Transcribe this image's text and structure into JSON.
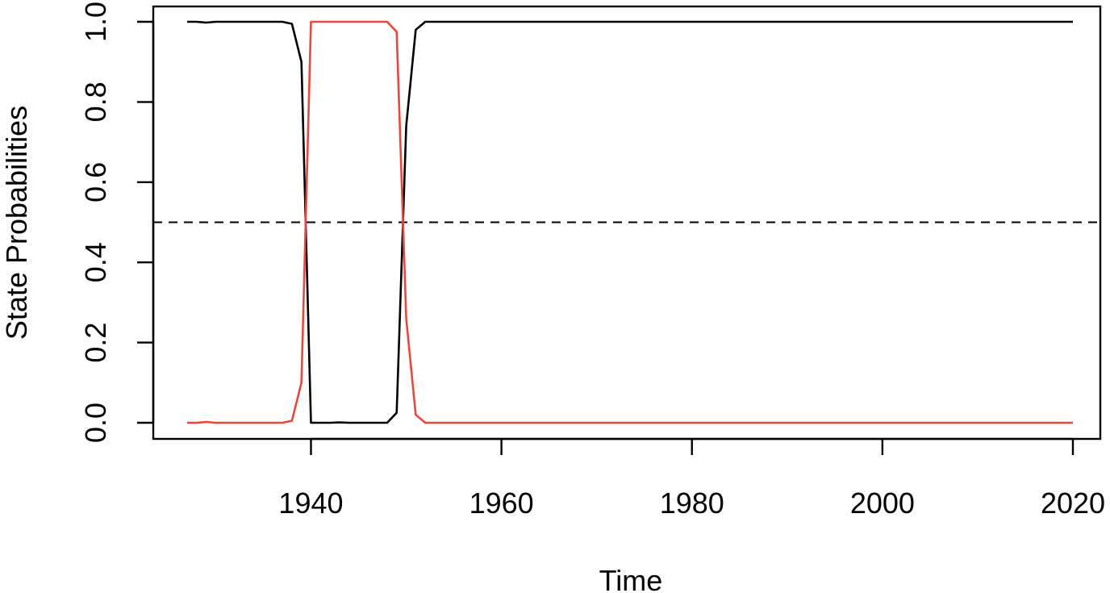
{
  "chart_data": {
    "type": "line",
    "title": "",
    "xlabel": "Time",
    "ylabel": "State Probabilities",
    "xlim": [
      1927,
      2020
    ],
    "ylim": [
      0,
      1
    ],
    "grid": false,
    "legend": "none",
    "x_ticks": [
      1940,
      1960,
      1980,
      2000,
      2020
    ],
    "x_tick_labels": [
      "1940",
      "1960",
      "1980",
      "2000",
      "2020"
    ],
    "y_ticks": [
      0.0,
      0.2,
      0.4,
      0.6,
      0.8,
      1.0
    ],
    "y_tick_labels": [
      "0.0",
      "0.2",
      "0.4",
      "0.6",
      "0.8",
      "1.0"
    ],
    "reference_line": {
      "y": 0.5,
      "style": "dashed",
      "color": "#000000"
    },
    "series": [
      {
        "color": "#000000",
        "x": [
          1927,
          1928,
          1929,
          1930,
          1931,
          1932,
          1933,
          1934,
          1935,
          1936,
          1937,
          1938,
          1939,
          1940,
          1941,
          1942,
          1943,
          1944,
          1945,
          1946,
          1947,
          1948,
          1949,
          1950,
          1951,
          1952,
          1960,
          1970,
          1980,
          1990,
          2000,
          2010,
          2020
        ],
        "y": [
          1.0,
          1.0,
          0.998,
          1.0,
          1.0,
          1.0,
          1.0,
          1.0,
          1.0,
          1.0,
          1.0,
          0.995,
          0.9,
          0.0,
          0.0,
          0.0,
          0.001,
          0.0,
          0.0,
          0.0,
          0.0,
          0.0,
          0.025,
          0.74,
          0.98,
          1.0,
          1.0,
          1.0,
          1.0,
          1.0,
          1.0,
          1.0,
          1.0
        ]
      },
      {
        "color": "#e8483c",
        "x": [
          1927,
          1928,
          1929,
          1930,
          1931,
          1932,
          1933,
          1934,
          1935,
          1936,
          1937,
          1938,
          1939,
          1940,
          1941,
          1942,
          1943,
          1944,
          1945,
          1946,
          1947,
          1948,
          1949,
          1950,
          1951,
          1952,
          1960,
          1970,
          1980,
          1990,
          2000,
          2010,
          2020
        ],
        "y": [
          0.0,
          0.0,
          0.002,
          0.0,
          0.0,
          0.0,
          0.0,
          0.0,
          0.0,
          0.0,
          0.0,
          0.005,
          0.1,
          1.0,
          1.0,
          1.0,
          1.0,
          1.0,
          1.0,
          1.0,
          1.0,
          1.0,
          0.975,
          0.26,
          0.02,
          0.0,
          0.0,
          0.0,
          0.0,
          0.0,
          0.0,
          0.0,
          0.0
        ]
      }
    ]
  }
}
